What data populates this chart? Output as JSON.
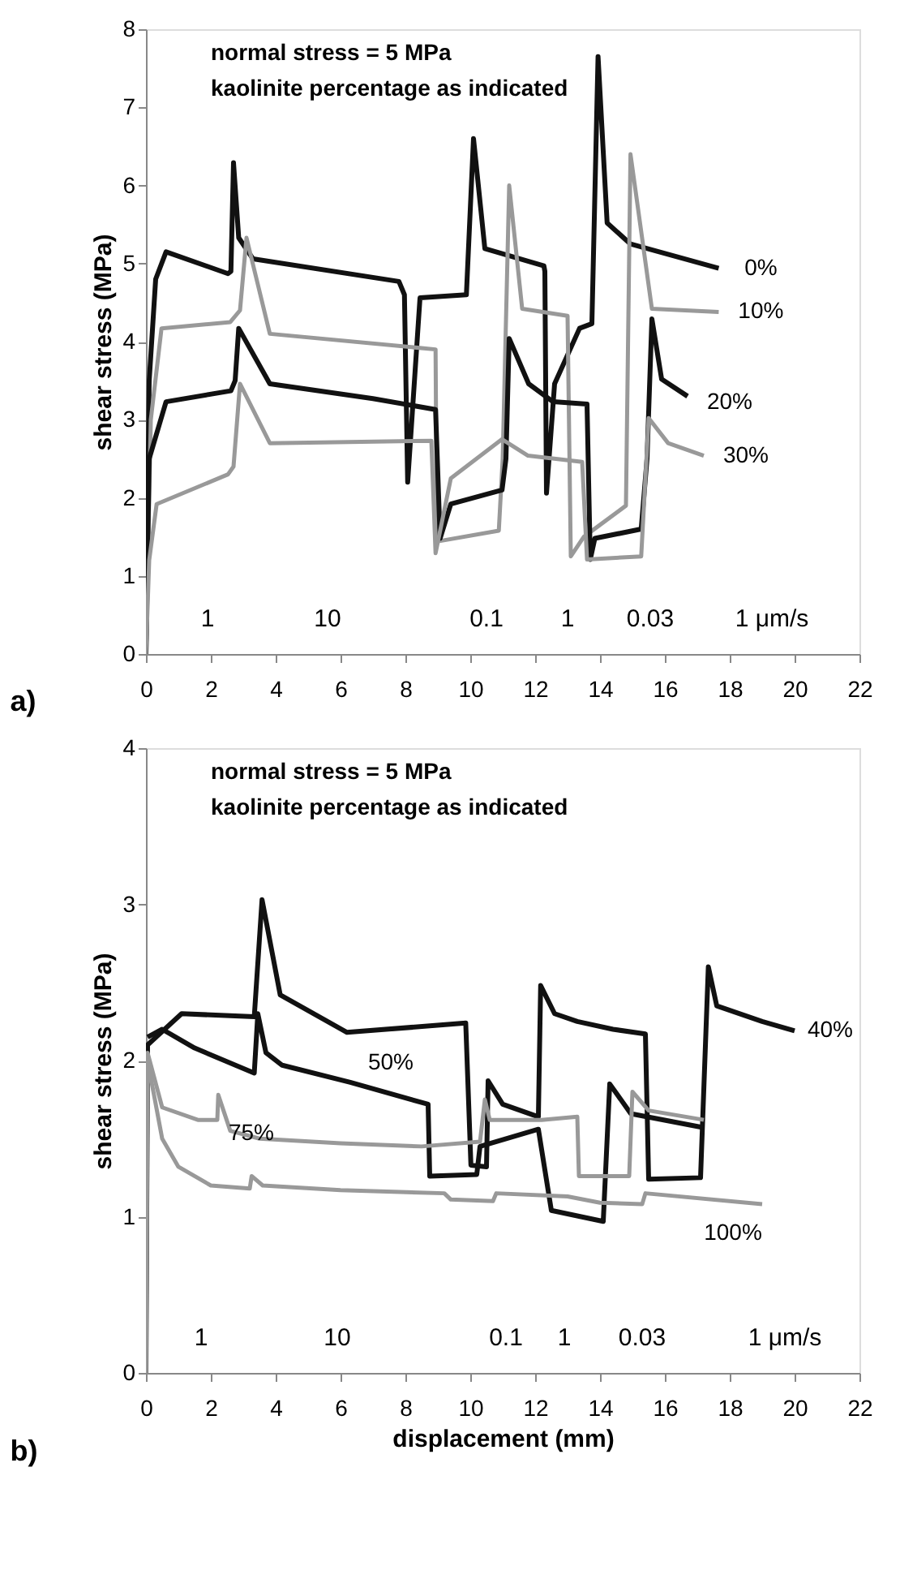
{
  "chart_data": [
    {
      "type": "line",
      "title": "a)",
      "ylabel": "shear stress (MPa)",
      "xlim": [
        0,
        22
      ],
      "xticks": [
        0,
        2,
        4,
        6,
        8,
        10,
        12,
        14,
        16,
        18,
        20,
        22
      ],
      "ylim": [
        0,
        8
      ],
      "yticks": [
        0,
        1,
        2,
        3,
        4,
        5,
        6,
        7,
        8
      ],
      "annotations": [
        "normal stress = 5 MPa",
        "kaolinite percentage as indicated",
        "1",
        "10",
        "0.1",
        "1",
        "0.03",
        "1 μm/s"
      ],
      "series": [
        {
          "name": "0%",
          "color": "#111111",
          "x": [
            0,
            0.1,
            0.3,
            0.62,
            2.53,
            2.62,
            2.7,
            2.86,
            3.3,
            7.8,
            7.97,
            8.07,
            8.45,
            9.88,
            10.1,
            10.45,
            12.27,
            12.3,
            12.35,
            12.6,
            13.37,
            13.75,
            13.94,
            14.22,
            14.94,
            17.66
          ],
          "values": [
            0,
            3.5,
            4.8,
            5.15,
            4.87,
            4.9,
            6.29,
            5.33,
            5.06,
            4.77,
            4.6,
            2.2,
            4.56,
            4.6,
            6.6,
            5.19,
            4.97,
            4.9,
            2.06,
            3.46,
            4.17,
            4.23,
            7.65,
            5.52,
            5.25,
            4.94
          ]
        },
        {
          "name": "10%",
          "color": "#999999",
          "x": [
            0,
            0.15,
            0.48,
            2.6,
            2.9,
            3.1,
            3.82,
            8.93,
            8.97,
            10.88,
            11.0,
            11.2,
            11.6,
            13.0,
            13.1,
            13.5,
            14.8,
            14.94,
            15.6,
            17.66
          ],
          "values": [
            0,
            3.0,
            4.17,
            4.25,
            4.4,
            5.33,
            4.1,
            3.9,
            1.44,
            1.58,
            2.5,
            6.0,
            4.42,
            4.33,
            1.25,
            1.5,
            1.9,
            6.4,
            4.42,
            4.38
          ]
        },
        {
          "name": "20%",
          "color": "#111111",
          "x": [
            0,
            0.1,
            0.62,
            2.62,
            2.75,
            2.86,
            3.82,
            7.0,
            8.93,
            9.07,
            9.4,
            10.98,
            11.1,
            11.2,
            11.8,
            12.55,
            13.6,
            13.7,
            13.84,
            15.27,
            15.45,
            15.6,
            15.9,
            16.7
          ],
          "values": [
            0,
            2.5,
            3.23,
            3.37,
            3.5,
            4.17,
            3.46,
            3.27,
            3.13,
            1.48,
            1.92,
            2.1,
            2.5,
            4.04,
            3.46,
            3.23,
            3.2,
            1.21,
            1.48,
            1.6,
            2.5,
            4.29,
            3.52,
            3.3
          ]
        },
        {
          "name": "30%",
          "color": "#999999",
          "x": [
            0,
            0.1,
            0.33,
            2.53,
            2.7,
            2.9,
            3.82,
            8.8,
            8.93,
            9.4,
            10.98,
            11.78,
            13.45,
            13.6,
            15.27,
            15.5,
            16.1,
            17.2
          ],
          "values": [
            0,
            1.2,
            1.92,
            2.3,
            2.4,
            3.46,
            2.7,
            2.73,
            1.29,
            2.25,
            2.75,
            2.54,
            2.46,
            1.21,
            1.25,
            3.02,
            2.7,
            2.54
          ]
        }
      ]
    },
    {
      "type": "line",
      "title": "b)",
      "xlabel": "displacement (mm)",
      "ylabel": "shear stress (MPa)",
      "xlim": [
        0,
        22
      ],
      "xticks": [
        0,
        2,
        4,
        6,
        8,
        10,
        12,
        14,
        16,
        18,
        20,
        22
      ],
      "ylim": [
        0,
        4
      ],
      "yticks": [
        0,
        1,
        2,
        3,
        4
      ],
      "annotations": [
        "normal stress = 5 MPa",
        "kaolinite percentage as indicated",
        "1",
        "10",
        "0.1",
        "1",
        "0.03",
        "1 μm/s"
      ],
      "series": [
        {
          "name": "40%",
          "color": "#111111",
          "x": [
            0,
            0.05,
            1.1,
            3.34,
            3.58,
            4.14,
            6.2,
            9.86,
            10.02,
            10.5,
            10.55,
            11.0,
            12.1,
            12.17,
            12.6,
            13.3,
            14.4,
            15.4,
            15.5,
            17.1,
            17.34,
            17.6,
            19.0,
            20.0
          ],
          "values": [
            0,
            2.1,
            2.3,
            2.28,
            3.03,
            2.42,
            2.18,
            2.24,
            1.33,
            1.32,
            1.87,
            1.72,
            1.64,
            2.48,
            2.3,
            2.25,
            2.2,
            2.17,
            1.24,
            1.25,
            2.6,
            2.35,
            2.25,
            2.19
          ]
        },
        {
          "name": "50%",
          "color": "#111111",
          "x": [
            0.05,
            0.5,
            1.5,
            3.34,
            3.45,
            3.7,
            4.2,
            6.3,
            8.7,
            8.75,
            10.2,
            10.3,
            12.1,
            12.5,
            14.1,
            14.3,
            14.95,
            17.2
          ],
          "values": [
            2.15,
            2.2,
            2.08,
            1.92,
            2.3,
            2.05,
            1.97,
            1.86,
            1.72,
            1.26,
            1.27,
            1.45,
            1.56,
            1.04,
            0.97,
            1.85,
            1.66,
            1.57
          ]
        },
        {
          "name": "75%",
          "color": "#999999",
          "x": [
            0,
            0.05,
            0.5,
            1.6,
            2.2,
            2.23,
            2.6,
            3.5,
            6.0,
            8.5,
            10.3,
            10.45,
            10.6,
            12.2,
            13.3,
            13.35,
            14.9,
            15.0,
            15.5,
            17.2
          ],
          "values": [
            0,
            2.05,
            1.7,
            1.62,
            1.62,
            1.78,
            1.55,
            1.5,
            1.47,
            1.45,
            1.48,
            1.75,
            1.62,
            1.62,
            1.64,
            1.26,
            1.26,
            1.8,
            1.68,
            1.62
          ]
        },
        {
          "name": "100%",
          "color": "#999999",
          "x": [
            0,
            0.05,
            0.5,
            1.0,
            2.0,
            3.2,
            3.26,
            3.6,
            6.0,
            9.2,
            9.4,
            10.7,
            10.8,
            13.0,
            14.0,
            15.3,
            15.4,
            19.0
          ],
          "values": [
            0,
            2.0,
            1.5,
            1.32,
            1.2,
            1.18,
            1.26,
            1.2,
            1.17,
            1.15,
            1.11,
            1.1,
            1.15,
            1.13,
            1.09,
            1.08,
            1.15,
            1.08
          ]
        }
      ]
    }
  ]
}
